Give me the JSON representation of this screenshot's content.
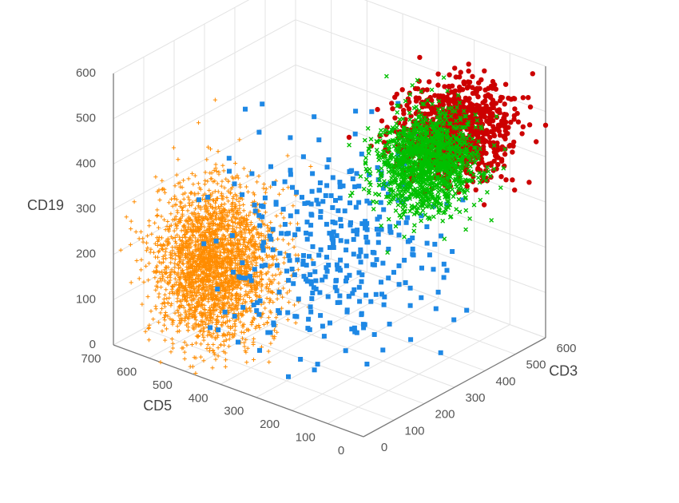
{
  "chart_data": {
    "type": "scatter",
    "projection": "3d",
    "axes": {
      "x": {
        "label": "CD3",
        "range": [
          0,
          600
        ],
        "ticks": [
          0,
          100,
          200,
          300,
          400,
          500,
          600
        ]
      },
      "y": {
        "label": "CD5",
        "range": [
          0,
          700
        ],
        "ticks": [
          0,
          100,
          200,
          300,
          400,
          500,
          600,
          700
        ]
      },
      "z": {
        "label": "CD19",
        "range": [
          0,
          600
        ],
        "ticks": [
          0,
          100,
          200,
          300,
          400,
          500,
          600
        ]
      }
    },
    "grid": true,
    "legend": "none",
    "series": [
      {
        "marker": "plus",
        "color": "#ff8c00",
        "center": [
          120,
          520,
          190
        ],
        "spread": [
          70,
          60,
          80
        ],
        "count": 2600
      },
      {
        "marker": "square",
        "color": "#1e88e5",
        "center": [
          250,
          300,
          250
        ],
        "spread": [
          110,
          110,
          110
        ],
        "count": 360
      },
      {
        "marker": "circle",
        "color": "#cc0000",
        "center": [
          470,
          140,
          460
        ],
        "spread": [
          65,
          55,
          45
        ],
        "count": 1000
      },
      {
        "marker": "x",
        "color": "#00c000",
        "center": [
          420,
          180,
          400
        ],
        "spread": [
          55,
          50,
          50
        ],
        "count": 1300
      }
    ]
  }
}
